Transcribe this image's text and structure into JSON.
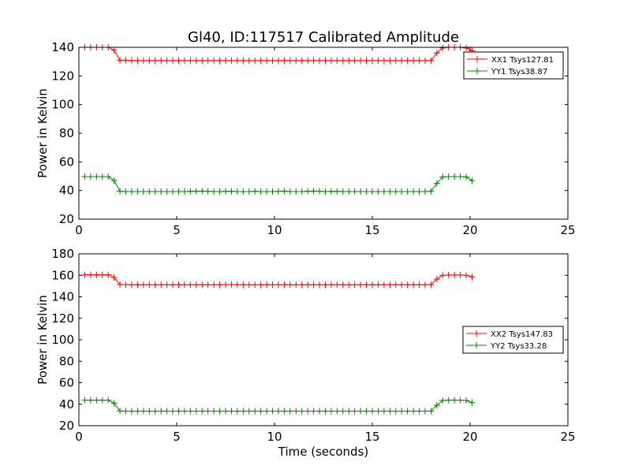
{
  "title": "Gl40, ID:117517 Calibrated Amplitude",
  "chart_data": [
    {
      "type": "line",
      "ylabel": "Power in Kelvin",
      "xlabel": "",
      "xlim": [
        0,
        25
      ],
      "ylim": [
        20,
        140
      ],
      "xticks": [
        "0",
        "5",
        "10",
        "15",
        "20",
        "25"
      ],
      "yticks": [
        "20",
        "40",
        "60",
        "80",
        "100",
        "120",
        "140"
      ],
      "legend_position": "upper right",
      "grid": false,
      "series": [
        {
          "name": "XX1 Tsys127.81",
          "color": "#ff0000",
          "marker": "plus",
          "x": [
            0.3,
            0.6,
            0.9,
            1.2,
            1.5,
            1.8,
            2.1,
            2.4,
            2.7,
            3.0,
            3.3,
            3.6,
            3.9,
            4.2,
            4.5,
            4.8,
            5.1,
            5.4,
            5.7,
            6.0,
            6.3,
            6.6,
            6.9,
            7.2,
            7.5,
            7.8,
            8.1,
            8.4,
            8.7,
            9.0,
            9.3,
            9.6,
            9.9,
            10.2,
            10.5,
            10.8,
            11.1,
            11.4,
            11.7,
            12.0,
            12.3,
            12.6,
            12.9,
            13.2,
            13.5,
            13.8,
            14.1,
            14.4,
            14.7,
            15.0,
            15.3,
            15.6,
            15.9,
            16.2,
            16.5,
            16.8,
            17.1,
            17.4,
            17.7,
            18.0,
            18.3,
            18.6,
            18.9,
            19.2,
            19.5,
            19.8,
            20.1
          ],
          "y": [
            140,
            140,
            140,
            140,
            140,
            138,
            131,
            131,
            130.8,
            130.7,
            130.7,
            130.7,
            130.7,
            130.7,
            130.7,
            130.7,
            130.7,
            130.7,
            130.7,
            130.7,
            130.7,
            130.7,
            130.7,
            130.7,
            130.7,
            130.7,
            130.7,
            130.7,
            130.7,
            130.7,
            130.7,
            130.7,
            130.7,
            130.7,
            130.7,
            130.7,
            130.7,
            130.7,
            130.7,
            130.7,
            130.7,
            130.7,
            130.7,
            130.7,
            130.7,
            130.7,
            130.7,
            130.7,
            130.7,
            130.7,
            130.7,
            130.7,
            130.7,
            130.7,
            130.7,
            130.7,
            130.7,
            130.7,
            130.7,
            130.7,
            136,
            139.5,
            140,
            140,
            140,
            139.5,
            137.5
          ]
        },
        {
          "name": "YY1 Tsys38.87",
          "color": "#008000",
          "marker": "plus",
          "x": [
            0.3,
            0.6,
            0.9,
            1.2,
            1.5,
            1.8,
            2.1,
            2.4,
            2.7,
            3.0,
            3.3,
            3.6,
            3.9,
            4.2,
            4.5,
            4.8,
            5.1,
            5.4,
            5.7,
            6.0,
            6.3,
            6.6,
            6.9,
            7.2,
            7.5,
            7.8,
            8.1,
            8.4,
            8.7,
            9.0,
            9.3,
            9.6,
            9.9,
            10.2,
            10.5,
            10.8,
            11.1,
            11.4,
            11.7,
            12.0,
            12.3,
            12.6,
            12.9,
            13.2,
            13.5,
            13.8,
            14.1,
            14.4,
            14.7,
            15.0,
            15.3,
            15.6,
            15.9,
            16.2,
            16.5,
            16.8,
            17.1,
            17.4,
            17.7,
            18.0,
            18.3,
            18.6,
            18.9,
            19.2,
            19.5,
            19.8,
            20.1
          ],
          "y": [
            49.7,
            49.7,
            49.7,
            49.7,
            49.7,
            47,
            39.5,
            39.3,
            39.3,
            39.3,
            39.3,
            39.3,
            39.3,
            39.3,
            39.3,
            39.3,
            39.3,
            39.3,
            39.4,
            39.5,
            39.6,
            39.5,
            39.3,
            39.3,
            39.4,
            39.5,
            39.3,
            39.3,
            39.3,
            39.5,
            39.3,
            39.3,
            39.3,
            39.5,
            39.6,
            39.3,
            39.3,
            39.3,
            39.5,
            39.6,
            39.5,
            39.3,
            39.4,
            39.5,
            39.3,
            39.3,
            39.3,
            39.3,
            39.3,
            39.3,
            39.3,
            39.3,
            39.3,
            39.3,
            39.3,
            39.3,
            39.3,
            39.3,
            39.3,
            39.4,
            45,
            49.5,
            49.7,
            49.7,
            49.7,
            49.5,
            47
          ]
        }
      ]
    },
    {
      "type": "line",
      "ylabel": "Power in Kelvin",
      "xlabel": "Time (seconds)",
      "xlim": [
        0,
        25
      ],
      "ylim": [
        20,
        180
      ],
      "xticks": [
        "0",
        "5",
        "10",
        "15",
        "20",
        "25"
      ],
      "yticks": [
        "20",
        "40",
        "60",
        "80",
        "100",
        "120",
        "140",
        "160",
        "180"
      ],
      "legend_position": "center right",
      "grid": false,
      "series": [
        {
          "name": "XX2 Tsys147.83",
          "color": "#ff0000",
          "marker": "plus",
          "x": [
            0.3,
            0.6,
            0.9,
            1.2,
            1.5,
            1.8,
            2.1,
            2.4,
            2.7,
            3.0,
            3.3,
            3.6,
            3.9,
            4.2,
            4.5,
            4.8,
            5.1,
            5.4,
            5.7,
            6.0,
            6.3,
            6.6,
            6.9,
            7.2,
            7.5,
            7.8,
            8.1,
            8.4,
            8.7,
            9.0,
            9.3,
            9.6,
            9.9,
            10.2,
            10.5,
            10.8,
            11.1,
            11.4,
            11.7,
            12.0,
            12.3,
            12.6,
            12.9,
            13.2,
            13.5,
            13.8,
            14.1,
            14.4,
            14.7,
            15.0,
            15.3,
            15.6,
            15.9,
            16.2,
            16.5,
            16.8,
            17.1,
            17.4,
            17.7,
            18.0,
            18.3,
            18.6,
            18.9,
            19.2,
            19.5,
            19.8,
            20.1
          ],
          "y": [
            160.5,
            160.5,
            160.5,
            160.5,
            160.5,
            158,
            151.5,
            151.3,
            151.2,
            151.2,
            151.2,
            151.2,
            151.2,
            151.2,
            151.2,
            151.2,
            151.2,
            151.2,
            151.2,
            151.2,
            151.2,
            151.2,
            151.2,
            151.2,
            151.3,
            151.5,
            151.2,
            151.2,
            151.2,
            151.2,
            151.2,
            151.2,
            151.2,
            151.2,
            151.2,
            151.2,
            151.2,
            151.2,
            151.2,
            151.2,
            151.2,
            151.2,
            151.2,
            151.3,
            151.2,
            151.2,
            151.2,
            151.2,
            151.2,
            151.2,
            151.2,
            151.3,
            151.2,
            151.2,
            151.2,
            151.2,
            151.2,
            151.2,
            151.2,
            151.2,
            156.5,
            160,
            160.3,
            160.3,
            160.3,
            160,
            158.5
          ]
        },
        {
          "name": "YY2 Tsys33.28",
          "color": "#008000",
          "marker": "plus",
          "x": [
            0.3,
            0.6,
            0.9,
            1.2,
            1.5,
            1.8,
            2.1,
            2.4,
            2.7,
            3.0,
            3.3,
            3.6,
            3.9,
            4.2,
            4.5,
            4.8,
            5.1,
            5.4,
            5.7,
            6.0,
            6.3,
            6.6,
            6.9,
            7.2,
            7.5,
            7.8,
            8.1,
            8.4,
            8.7,
            9.0,
            9.3,
            9.6,
            9.9,
            10.2,
            10.5,
            10.8,
            11.1,
            11.4,
            11.7,
            12.0,
            12.3,
            12.6,
            12.9,
            13.2,
            13.5,
            13.8,
            14.1,
            14.4,
            14.7,
            15.0,
            15.3,
            15.6,
            15.9,
            16.2,
            16.5,
            16.8,
            17.1,
            17.4,
            17.7,
            18.0,
            18.3,
            18.6,
            18.9,
            19.2,
            19.5,
            19.8,
            20.1
          ],
          "y": [
            43.8,
            43.8,
            43.8,
            43.8,
            43.8,
            41,
            33.8,
            33.6,
            33.6,
            33.6,
            33.6,
            33.6,
            33.6,
            33.6,
            33.6,
            33.6,
            33.6,
            33.6,
            33.6,
            33.6,
            33.6,
            33.6,
            33.6,
            33.6,
            33.6,
            33.6,
            33.6,
            33.6,
            33.6,
            33.6,
            33.6,
            33.6,
            33.6,
            33.6,
            33.6,
            33.6,
            33.6,
            33.6,
            33.6,
            33.6,
            33.6,
            33.6,
            33.6,
            33.6,
            33.6,
            33.6,
            33.6,
            33.6,
            33.6,
            33.6,
            33.6,
            33.6,
            33.6,
            33.6,
            33.6,
            33.6,
            33.6,
            33.6,
            33.6,
            33.6,
            39,
            43.5,
            43.8,
            43.8,
            43.8,
            43.5,
            41.5
          ]
        }
      ]
    }
  ]
}
